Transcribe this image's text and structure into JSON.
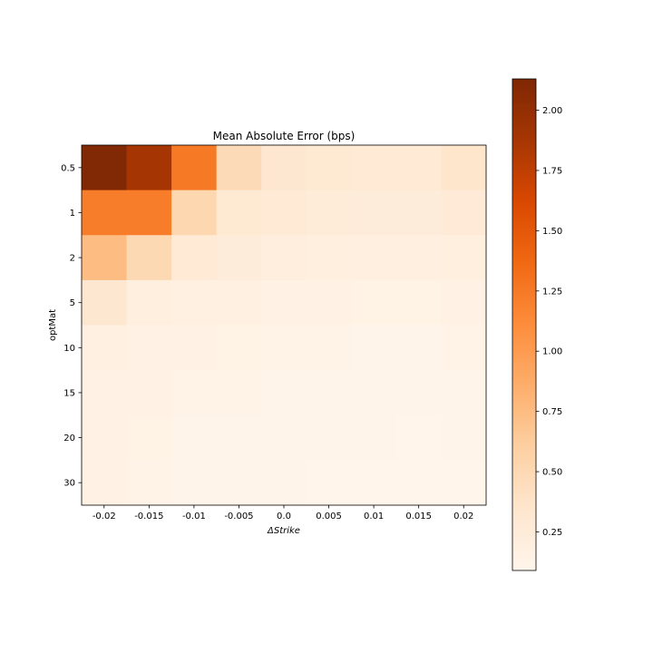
{
  "chart_data": {
    "type": "heatmap",
    "title": "Mean Absolute Error (bps)",
    "xlabel": "ΔStrike",
    "ylabel": "optMat",
    "x_categories": [
      "-0.02",
      "-0.015",
      "-0.01",
      "-0.005",
      "0.0",
      "0.005",
      "0.01",
      "0.015",
      "0.02"
    ],
    "y_categories": [
      "0.5",
      "1",
      "2",
      "5",
      "10",
      "15",
      "20",
      "30"
    ],
    "values": [
      [
        2.12,
        1.88,
        1.25,
        0.48,
        0.33,
        0.3,
        0.28,
        0.28,
        0.35
      ],
      [
        1.22,
        1.22,
        0.52,
        0.3,
        0.28,
        0.25,
        0.24,
        0.24,
        0.27
      ],
      [
        0.75,
        0.5,
        0.28,
        0.24,
        0.21,
        0.2,
        0.19,
        0.19,
        0.2
      ],
      [
        0.33,
        0.2,
        0.18,
        0.17,
        0.14,
        0.14,
        0.13,
        0.13,
        0.14
      ],
      [
        0.18,
        0.15,
        0.14,
        0.13,
        0.12,
        0.12,
        0.11,
        0.11,
        0.12
      ],
      [
        0.16,
        0.14,
        0.12,
        0.12,
        0.11,
        0.11,
        0.1,
        0.1,
        0.11
      ],
      [
        0.15,
        0.13,
        0.11,
        0.11,
        0.1,
        0.1,
        0.1,
        0.09,
        0.1
      ],
      [
        0.14,
        0.12,
        0.11,
        0.1,
        0.1,
        0.09,
        0.09,
        0.09,
        0.09
      ]
    ],
    "colorbar": {
      "min": 0.09,
      "max": 2.13,
      "ticks": [
        0.25,
        0.5,
        0.75,
        1.0,
        1.25,
        1.5,
        1.75,
        2.0
      ],
      "tick_labels": [
        "0.25",
        "0.50",
        "0.75",
        "1.00",
        "1.25",
        "1.50",
        "1.75",
        "2.00"
      ],
      "colormap": "Oranges",
      "colormap_stops": [
        "#fff5eb",
        "#fee6ce",
        "#fdd0a2",
        "#fdae6b",
        "#fd8d3c",
        "#f16913",
        "#d94801",
        "#a63603",
        "#7f2704"
      ]
    },
    "grid": false
  }
}
